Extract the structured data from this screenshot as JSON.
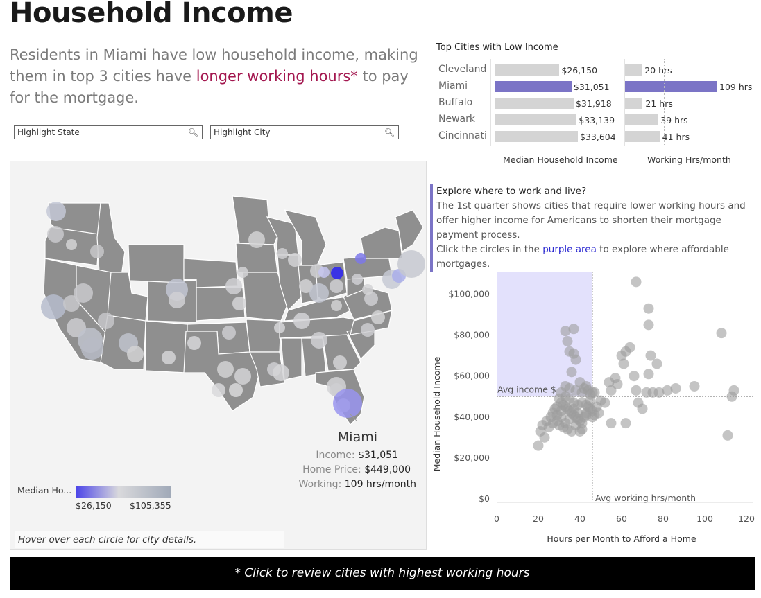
{
  "header": {
    "title": "Household Income",
    "subtitle_pre": "Residents in Miami have low household income, making them in top 3 cities have ",
    "subtitle_highlight": "longer working hours*",
    "subtitle_post": " to pay for the mortgage."
  },
  "filters": {
    "state_label": "Highlight State",
    "city_label": "Highlight City"
  },
  "low_income": {
    "title": "Top Cities with Low Income",
    "income_axis_label": "Median Household Income",
    "hours_axis_label": "Working Hrs/month",
    "rows": [
      {
        "city": "Cleveland",
        "income": 26150,
        "income_label": "$26,150",
        "hours": 20,
        "hours_label": "20 hrs",
        "selected": false
      },
      {
        "city": "Miami",
        "income": 31051,
        "income_label": "$31,051",
        "hours": 109,
        "hours_label": "109 hrs",
        "selected": true
      },
      {
        "city": "Buffalo",
        "income": 31918,
        "income_label": "$31,918",
        "hours": 21,
        "hours_label": "21 hrs",
        "selected": false
      },
      {
        "city": "Newark",
        "income": 33139,
        "income_label": "$33,139",
        "hours": 39,
        "hours_label": "39 hrs",
        "selected": false
      },
      {
        "city": "Cincinnati",
        "income": 33604,
        "income_label": "$33,604",
        "hours": 41,
        "hours_label": "41 hrs",
        "selected": false
      }
    ]
  },
  "map": {
    "legend_title": "Median Ho...",
    "legend_min": "$26,150",
    "legend_max": "$105,355",
    "hover_note": "Hover over each circle for city details.",
    "tooltip": {
      "city": "Miami",
      "income_label": "Income:",
      "income_value": "$31,051",
      "price_label": "Home Price:",
      "price_value": "$449,000",
      "working_label": "Working:",
      "working_value": "109 hrs/month"
    },
    "colors": {
      "land": "#8f8f8f",
      "low": "#4a43e8",
      "high": "#a0a9b8",
      "mid": "#d9d9dc"
    }
  },
  "explore": {
    "heading": "Explore where to work and live?",
    "body": "The 1st quarter shows cities that require lower working hours and offer higher income for Americans to shorten their mortgage payment process.",
    "cta_pre": "Click the circles in the ",
    "cta_link": "purple area",
    "cta_post": " to explore where affordable mortgages."
  },
  "chart_data": {
    "type": "scatter",
    "xlabel": "Hours per Month to Afford a Home",
    "ylabel": "Median Household Income",
    "xlim": [
      0,
      123
    ],
    "ylim": [
      0,
      110000
    ],
    "x_ticks": [
      "0",
      "20",
      "40",
      "60",
      "80",
      "100",
      "120"
    ],
    "y_ticks": [
      "$0",
      "$20,000",
      "$40,000",
      "$60,000",
      "$80,000",
      "$100,000"
    ],
    "avg_income": 50000,
    "avg_hours": 46,
    "avg_income_label": "Avg income $",
    "avg_hours_label": "Avg working hrs/month",
    "points": [
      [
        33,
        82000
      ],
      [
        34,
        77000
      ],
      [
        37,
        83000
      ],
      [
        35,
        72000
      ],
      [
        37,
        71000
      ],
      [
        38,
        68000
      ],
      [
        36,
        62000
      ],
      [
        40,
        57000
      ],
      [
        41,
        52000
      ],
      [
        42,
        54000
      ],
      [
        43,
        55000
      ],
      [
        44,
        53000
      ],
      [
        45,
        51000
      ],
      [
        46,
        52000
      ],
      [
        47,
        52000
      ],
      [
        33,
        55000
      ],
      [
        35,
        54000
      ],
      [
        38,
        53000
      ],
      [
        30,
        49000
      ],
      [
        31,
        47000
      ],
      [
        32,
        46000
      ],
      [
        33,
        45000
      ],
      [
        34,
        44000
      ],
      [
        35,
        43000
      ],
      [
        36,
        42000
      ],
      [
        37,
        41000
      ],
      [
        38,
        40000
      ],
      [
        39,
        39000
      ],
      [
        40,
        38000
      ],
      [
        41,
        37000
      ],
      [
        42,
        40000
      ],
      [
        43,
        42000
      ],
      [
        44,
        45000
      ],
      [
        45,
        48000
      ],
      [
        46,
        43000
      ],
      [
        47,
        41000
      ],
      [
        28,
        44000
      ],
      [
        27,
        42000
      ],
      [
        29,
        38000
      ],
      [
        30,
        36000
      ],
      [
        31,
        40000
      ],
      [
        32,
        35000
      ],
      [
        34,
        34000
      ],
      [
        36,
        33000
      ],
      [
        38,
        36000
      ],
      [
        40,
        33000
      ],
      [
        41,
        34000
      ],
      [
        39,
        46000
      ],
      [
        37,
        47000
      ],
      [
        35,
        49000
      ],
      [
        33,
        50000
      ],
      [
        31,
        52000
      ],
      [
        29,
        45000
      ],
      [
        26,
        40000
      ],
      [
        24,
        38000
      ],
      [
        22,
        36000
      ],
      [
        21,
        33000
      ],
      [
        20,
        26000
      ],
      [
        23,
        30000
      ],
      [
        25,
        35000
      ],
      [
        27,
        37000
      ],
      [
        29,
        41000
      ],
      [
        31,
        43000
      ],
      [
        33,
        37000
      ],
      [
        35,
        39000
      ],
      [
        37,
        44000
      ],
      [
        39,
        42000
      ],
      [
        41,
        47000
      ],
      [
        43,
        46000
      ],
      [
        45,
        44000
      ],
      [
        48,
        45000
      ],
      [
        50,
        48000
      ],
      [
        52,
        47000
      ],
      [
        54,
        57000
      ],
      [
        55,
        53000
      ],
      [
        57,
        59000
      ],
      [
        58,
        56000
      ],
      [
        60,
        70000
      ],
      [
        61,
        66000
      ],
      [
        62,
        72000
      ],
      [
        64,
        74000
      ],
      [
        66,
        60000
      ],
      [
        67,
        53000
      ],
      [
        68,
        47000
      ],
      [
        70,
        44000
      ],
      [
        72,
        52000
      ],
      [
        73,
        61000
      ],
      [
        74,
        70000
      ],
      [
        75,
        52000
      ],
      [
        77,
        66000
      ],
      [
        78,
        52000
      ],
      [
        82,
        53000
      ],
      [
        86,
        54000
      ],
      [
        95,
        55000
      ],
      [
        108,
        81000
      ],
      [
        111,
        31000
      ],
      [
        113,
        50000
      ],
      [
        114,
        53000
      ],
      [
        67,
        106000
      ],
      [
        73,
        93000
      ],
      [
        73,
        85000
      ],
      [
        55,
        37000
      ],
      [
        62,
        37000
      ],
      [
        49,
        42000
      ],
      [
        46,
        40000
      ],
      [
        43,
        41000
      ]
    ]
  }
}
